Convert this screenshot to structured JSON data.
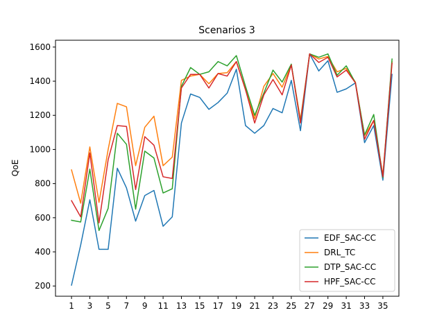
{
  "chart_data": {
    "type": "line",
    "title": "Scenarios 3",
    "xlabel": "",
    "ylabel": "QoE",
    "xlim": [
      -0.75,
      36.75
    ],
    "ylim": [
      140,
      1640
    ],
    "x": [
      1,
      2,
      3,
      4,
      5,
      6,
      7,
      8,
      9,
      10,
      11,
      12,
      13,
      14,
      15,
      16,
      17,
      18,
      19,
      20,
      21,
      22,
      23,
      24,
      25,
      26,
      27,
      28,
      29,
      30,
      31,
      32,
      33,
      34,
      35,
      36
    ],
    "xticks": [
      1,
      3,
      5,
      7,
      9,
      11,
      13,
      15,
      17,
      19,
      21,
      23,
      25,
      27,
      29,
      31,
      33,
      35
    ],
    "xtick_labels": [
      "1",
      "3",
      "5",
      "7",
      "9",
      "11",
      "13",
      "15",
      "17",
      "19",
      "21",
      "23",
      "25",
      "27",
      "29",
      "31",
      "33",
      "35"
    ],
    "yticks": [
      200,
      400,
      600,
      800,
      1000,
      1200,
      1400,
      1600
    ],
    "ytick_labels": [
      "200",
      "400",
      "600",
      "800",
      "1000",
      "1200",
      "1400",
      "1600"
    ],
    "grid": false,
    "legend_position": "lower-right",
    "series": [
      {
        "name": "EDF_SAC-CC",
        "color": "#1f77b4",
        "values": [
          205,
          440,
          705,
          415,
          415,
          890,
          775,
          580,
          730,
          760,
          550,
          605,
          1155,
          1325,
          1305,
          1235,
          1275,
          1330,
          1470,
          1140,
          1095,
          1140,
          1240,
          1215,
          1405,
          1110,
          1560,
          1460,
          1520,
          1335,
          1355,
          1390,
          1040,
          1140,
          820,
          1440
        ]
      },
      {
        "name": "DRL_TC",
        "color": "#ff7f0e",
        "values": [
          880,
          685,
          1015,
          690,
          1000,
          1270,
          1250,
          905,
          1130,
          1195,
          905,
          955,
          1405,
          1430,
          1440,
          1385,
          1445,
          1450,
          1515,
          1350,
          1180,
          1370,
          1445,
          1365,
          1495,
          1175,
          1560,
          1530,
          1545,
          1455,
          1475,
          1395,
          1080,
          1170,
          850,
          1515
        ]
      },
      {
        "name": "DTP_SAC-CC",
        "color": "#2ca02c",
        "values": [
          585,
          575,
          885,
          525,
          655,
          1095,
          1030,
          650,
          990,
          950,
          745,
          770,
          1370,
          1480,
          1440,
          1455,
          1515,
          1490,
          1550,
          1370,
          1200,
          1330,
          1465,
          1395,
          1500,
          1160,
          1560,
          1540,
          1560,
          1435,
          1490,
          1390,
          1085,
          1205,
          835,
          1530
        ]
      },
      {
        "name": "HPF_SAC-CC",
        "color": "#d62728",
        "values": [
          700,
          605,
          980,
          570,
          940,
          1140,
          1135,
          765,
          1075,
          1025,
          840,
          830,
          1360,
          1440,
          1440,
          1360,
          1445,
          1430,
          1515,
          1350,
          1155,
          1320,
          1410,
          1320,
          1495,
          1155,
          1560,
          1510,
          1540,
          1425,
          1465,
          1390,
          1060,
          1170,
          840,
          1505
        ]
      }
    ]
  }
}
